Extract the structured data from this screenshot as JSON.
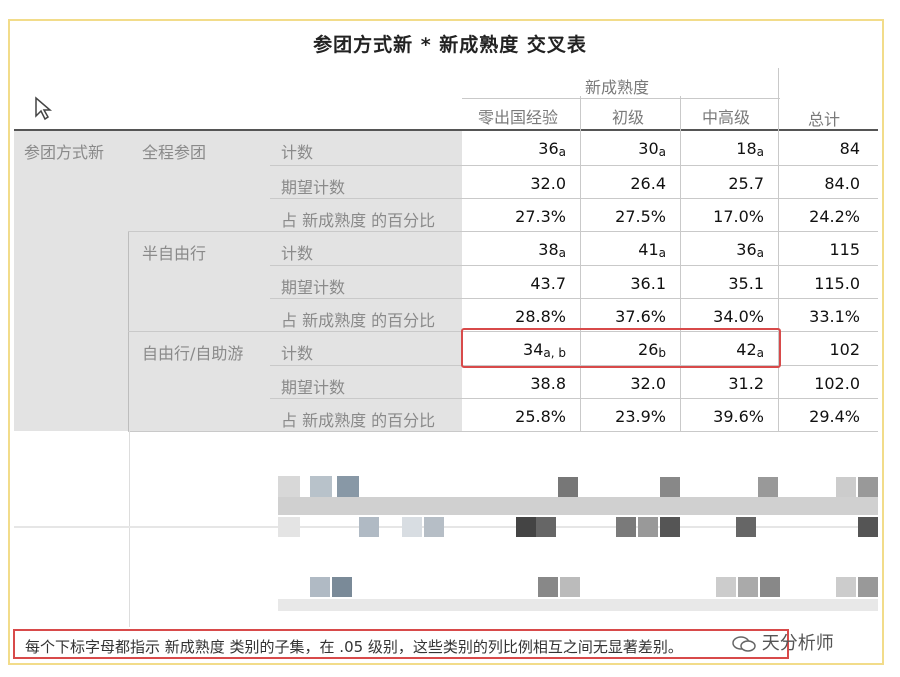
{
  "title": "参团方式新 * 新成熟度 交叉表",
  "col_group_header": "新成熟度",
  "col_headers": [
    "零出国经验",
    "初级",
    "中高级",
    "总计"
  ],
  "row_group_label": "参团方式新",
  "groups": [
    {
      "label": "全程参团",
      "rows": [
        {
          "label": "计数",
          "cells": [
            [
              "36",
              "a"
            ],
            [
              "30",
              "a"
            ],
            [
              "18",
              "a"
            ],
            [
              "84",
              ""
            ]
          ]
        },
        {
          "label": "期望计数",
          "cells": [
            [
              "32.0",
              ""
            ],
            [
              "26.4",
              ""
            ],
            [
              "25.7",
              ""
            ],
            [
              "84.0",
              ""
            ]
          ]
        },
        {
          "label": "占 新成熟度 的百分比",
          "cells": [
            [
              "27.3%",
              ""
            ],
            [
              "27.5%",
              ""
            ],
            [
              "17.0%",
              ""
            ],
            [
              "24.2%",
              ""
            ]
          ]
        }
      ]
    },
    {
      "label": "半自由行",
      "rows": [
        {
          "label": "计数",
          "cells": [
            [
              "38",
              "a"
            ],
            [
              "41",
              "a"
            ],
            [
              "36",
              "a"
            ],
            [
              "115",
              ""
            ]
          ]
        },
        {
          "label": "期望计数",
          "cells": [
            [
              "43.7",
              ""
            ],
            [
              "36.1",
              ""
            ],
            [
              "35.1",
              ""
            ],
            [
              "115.0",
              ""
            ]
          ]
        },
        {
          "label": "占 新成熟度 的百分比",
          "cells": [
            [
              "28.8%",
              ""
            ],
            [
              "37.6%",
              ""
            ],
            [
              "34.0%",
              ""
            ],
            [
              "33.1%",
              ""
            ]
          ]
        }
      ]
    },
    {
      "label": "自由行/自助游",
      "rows": [
        {
          "label": "计数",
          "cells": [
            [
              "34",
              "a, b"
            ],
            [
              "26",
              "b"
            ],
            [
              "42",
              "a"
            ],
            [
              "102",
              ""
            ]
          ]
        },
        {
          "label": "期望计数",
          "cells": [
            [
              "38.8",
              ""
            ],
            [
              "32.0",
              ""
            ],
            [
              "31.2",
              ""
            ],
            [
              "102.0",
              ""
            ]
          ]
        },
        {
          "label": "占 新成熟度 的百分比",
          "cells": [
            [
              "25.8%",
              ""
            ],
            [
              "23.9%",
              ""
            ],
            [
              "39.6%",
              ""
            ],
            [
              "29.4%",
              ""
            ]
          ]
        }
      ]
    }
  ],
  "footnote": "每个下标字母都指示 新成熟度 类别的子集，在 .05 级别，这些类别的列比例相互之间无显著差别。",
  "watermark": "天分析师",
  "colors": {
    "highlight": "#d84a4a",
    "frame": "#f2dc8a"
  }
}
